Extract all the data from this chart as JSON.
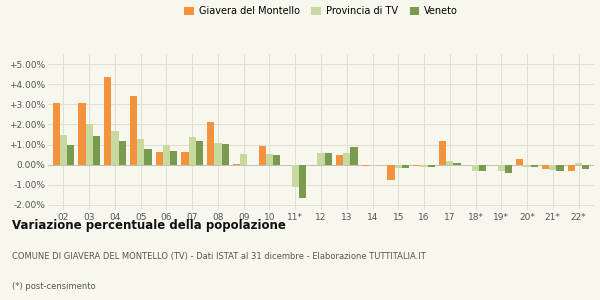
{
  "categories": [
    "02",
    "03",
    "04",
    "05",
    "06",
    "07",
    "08",
    "09",
    "10",
    "11*",
    "12",
    "13",
    "14",
    "15",
    "16",
    "17",
    "18*",
    "19*",
    "20*",
    "21*",
    "22*"
  ],
  "giavera": [
    3.05,
    3.05,
    4.35,
    3.4,
    0.65,
    0.65,
    2.1,
    0.05,
    0.95,
    0.0,
    0.0,
    0.5,
    -0.05,
    -0.75,
    -0.05,
    1.2,
    0.0,
    0.0,
    0.3,
    -0.2,
    -0.3
  ],
  "provincia": [
    1.5,
    2.0,
    1.65,
    1.3,
    1.0,
    1.4,
    1.1,
    0.55,
    0.55,
    -1.1,
    0.6,
    0.6,
    -0.05,
    -0.15,
    -0.1,
    0.2,
    -0.3,
    -0.3,
    -0.1,
    -0.25,
    0.1
  ],
  "veneto": [
    1.0,
    1.45,
    1.2,
    0.8,
    0.7,
    1.2,
    1.05,
    0.0,
    0.5,
    -1.65,
    0.6,
    0.9,
    0.0,
    -0.15,
    -0.1,
    0.1,
    -0.3,
    -0.4,
    -0.1,
    -0.3,
    -0.2
  ],
  "color_giavera": "#f5923e",
  "color_provincia": "#c8d9a0",
  "color_veneto": "#7a9a50",
  "legend_labels": [
    "Giavera del Montello",
    "Provincia di TV",
    "Veneto"
  ],
  "title": "Variazione percentuale della popolazione",
  "subtitle": "COMUNE DI GIAVERA DEL MONTELLO (TV) - Dati ISTAT al 31 dicembre - Elaborazione TUTTITALIA.IT",
  "footnote": "(*) post-censimento",
  "ylim": [
    -2.25,
    5.5
  ],
  "yticks": [
    -2.0,
    -1.0,
    0.0,
    1.0,
    2.0,
    3.0,
    4.0,
    5.0
  ],
  "bg_color": "#f7f7ee",
  "grid_color": "#e0e0d0"
}
